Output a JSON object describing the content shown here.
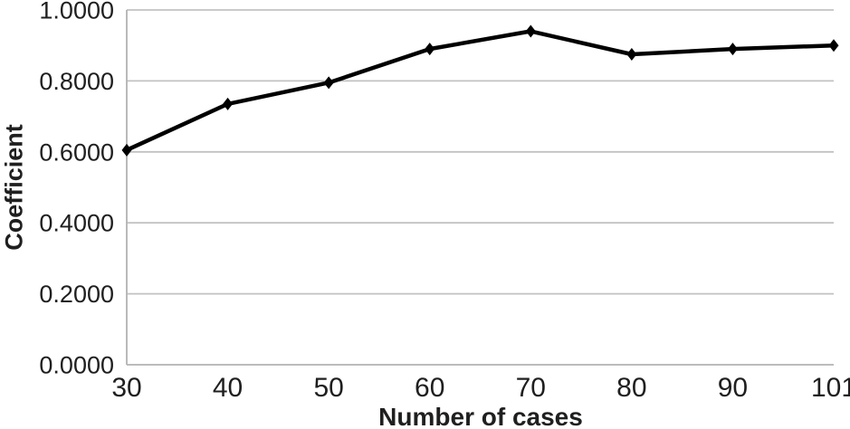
{
  "chart_data": {
    "type": "line",
    "title": "",
    "xlabel": "Number of cases",
    "ylabel": "Coefficient",
    "categories": [
      "30",
      "40",
      "50",
      "60",
      "70",
      "80",
      "90",
      "101"
    ],
    "series": [
      {
        "name": "Coefficient",
        "values": [
          0.605,
          0.735,
          0.795,
          0.89,
          0.94,
          0.875,
          0.89,
          0.9
        ]
      }
    ],
    "ytick_labels": [
      "0.0000",
      "0.2000",
      "0.4000",
      "0.6000",
      "0.8000",
      "1.0000"
    ],
    "ylim": [
      0.0,
      1.0
    ],
    "xlim_note": "category axis, first category on y-axis line",
    "grid": "horizontal",
    "legend": "none",
    "marker": "diamond",
    "line_color": "#000000",
    "marker_color": "#000000",
    "gridline_color": "#c2c2c2",
    "axis_color": "#b3b3b3",
    "text_color": "#1f1f1f",
    "background_color": "#ffffff"
  }
}
